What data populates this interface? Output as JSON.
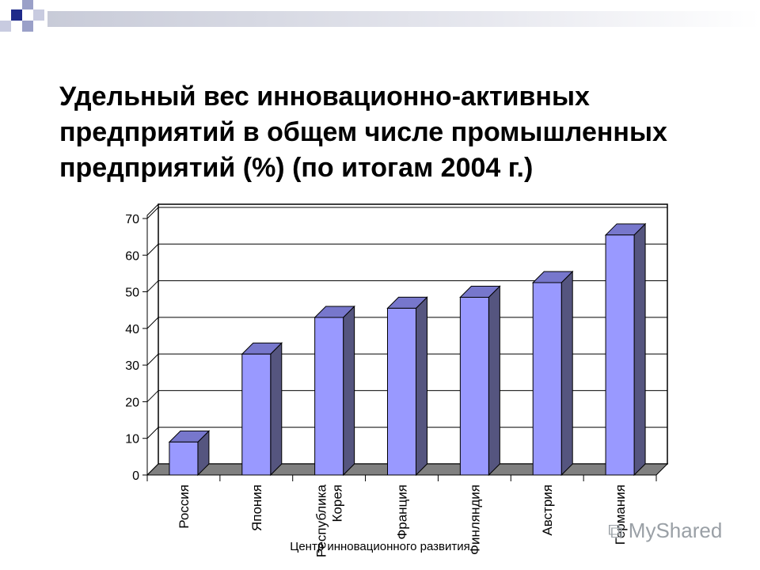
{
  "title": "Удельный вес инновационно-активных предприятий в общем числе промышленных предприятий (%) (по итогам 2004 г.)",
  "footer": "Центр инновационного развития",
  "watermark": "MyShared",
  "colors": {
    "bar_front": "#9999ff",
    "bar_side": "#55557f",
    "bar_top": "#7777cc",
    "banner": "#1f2a8a"
  },
  "chart_data": {
    "type": "bar",
    "categories": [
      "Россия",
      "Япония",
      "Республика Корея",
      "Франция",
      "Финляндия",
      "Австрия",
      "Германия"
    ],
    "values": [
      9,
      33,
      43,
      45.5,
      48.5,
      52.5,
      65.5
    ],
    "yticks": [
      0,
      10,
      20,
      30,
      40,
      50,
      60,
      70
    ],
    "ylim": [
      0,
      70
    ],
    "grid": true,
    "three_d": true
  }
}
